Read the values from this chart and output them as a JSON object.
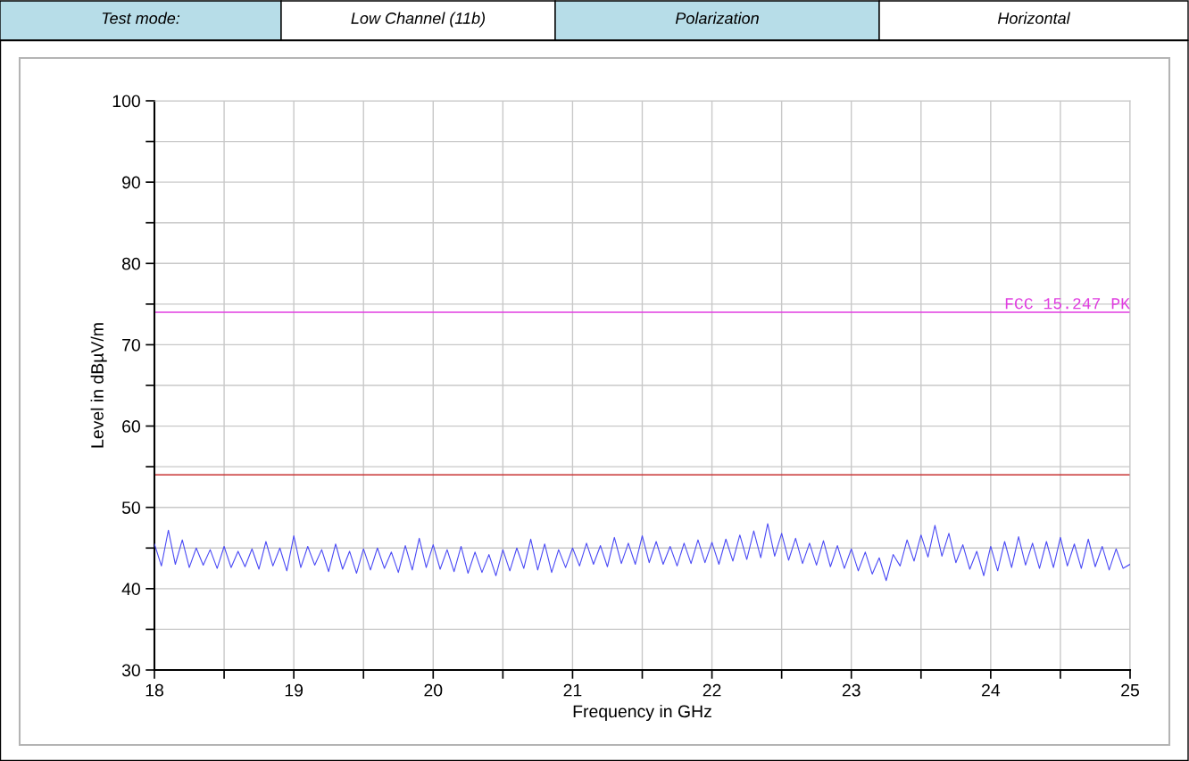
{
  "chart_data": {
    "type": "line",
    "annotations": [
      "Test mode:",
      "Low Channel (11b)",
      "Polarization",
      "Horizontal"
    ],
    "xlabel": "Frequency in GHz",
    "ylabel": "Level in dBµV/m",
    "xlim": [
      18,
      25
    ],
    "ylim": [
      30,
      100
    ],
    "xticks": [
      18,
      {
        "value": 18.5,
        "label": null
      },
      19,
      {
        "value": 19.5,
        "label": null
      },
      20,
      {
        "value": 20.5,
        "label": null
      },
      21,
      {
        "value": 21.5,
        "label": null
      },
      22,
      {
        "value": 22.5,
        "label": null
      },
      23,
      {
        "value": 23.5,
        "label": null
      },
      24,
      {
        "value": 24.5,
        "label": null
      },
      25
    ],
    "yticks": [
      30,
      {
        "value": 35,
        "label": null
      },
      40,
      {
        "value": 45,
        "label": null
      },
      50,
      {
        "value": 55,
        "label": null
      },
      60,
      {
        "value": 65,
        "label": null
      },
      70,
      {
        "value": 75,
        "label": null
      },
      80,
      {
        "value": 85,
        "label": null
      },
      90,
      {
        "value": 95,
        "label": null
      },
      100
    ],
    "grid": true,
    "marker": "none",
    "line_style": "solid",
    "ref_lines": [
      {
        "axis": "y",
        "value": 74,
        "label": "FCC 15.247 PK",
        "color": "#e03ce0"
      },
      {
        "axis": "y",
        "value": 54,
        "color": "#c83232"
      }
    ],
    "series": [
      {
        "color": "#4b4bf5",
        "x": [
          18.0,
          18.05,
          18.1,
          18.15,
          18.2,
          18.25,
          18.3,
          18.35,
          18.4,
          18.45,
          18.5,
          18.55,
          18.6,
          18.65,
          18.7,
          18.75,
          18.8,
          18.85,
          18.9,
          18.95,
          19.0,
          19.05,
          19.1,
          19.15,
          19.2,
          19.25,
          19.3,
          19.35,
          19.4,
          19.45,
          19.5,
          19.55,
          19.6,
          19.65,
          19.7,
          19.75,
          19.8,
          19.85,
          19.9,
          19.95,
          20.0,
          20.05,
          20.1,
          20.15,
          20.2,
          20.25,
          20.3,
          20.35,
          20.4,
          20.45,
          20.5,
          20.55,
          20.6,
          20.65,
          20.7,
          20.75,
          20.8,
          20.85,
          20.9,
          20.95,
          21.0,
          21.05,
          21.1,
          21.15,
          21.2,
          21.25,
          21.3,
          21.35,
          21.4,
          21.45,
          21.5,
          21.55,
          21.6,
          21.65,
          21.7,
          21.75,
          21.8,
          21.85,
          21.9,
          21.95,
          22.0,
          22.05,
          22.1,
          22.15,
          22.2,
          22.25,
          22.3,
          22.35,
          22.4,
          22.45,
          22.5,
          22.55,
          22.6,
          22.65,
          22.7,
          22.75,
          22.8,
          22.85,
          22.9,
          22.95,
          23.0,
          23.05,
          23.1,
          23.15,
          23.2,
          23.25,
          23.3,
          23.35,
          23.4,
          23.45,
          23.5,
          23.55,
          23.6,
          23.65,
          23.7,
          23.75,
          23.8,
          23.85,
          23.9,
          23.95,
          24.0,
          24.05,
          24.1,
          24.15,
          24.2,
          24.25,
          24.3,
          24.35,
          24.4,
          24.45,
          24.5,
          24.55,
          24.6,
          24.65,
          24.7,
          24.75,
          24.8,
          24.85,
          24.9,
          24.95,
          25.0
        ],
        "values": [
          45.5,
          42.8,
          47.2,
          43.0,
          46.0,
          42.6,
          45.0,
          42.9,
          44.8,
          42.5,
          45.2,
          42.6,
          44.6,
          42.7,
          44.9,
          42.4,
          45.8,
          42.8,
          45.0,
          42.2,
          46.5,
          42.6,
          45.2,
          42.9,
          44.8,
          42.1,
          45.5,
          42.4,
          44.6,
          41.9,
          44.9,
          42.3,
          45.0,
          42.5,
          44.5,
          42.0,
          45.3,
          42.3,
          46.2,
          42.6,
          45.4,
          42.4,
          44.8,
          42.1,
          45.2,
          41.9,
          44.5,
          42.0,
          44.2,
          41.6,
          44.8,
          42.2,
          45.0,
          42.5,
          46.1,
          42.3,
          45.5,
          42.0,
          44.8,
          42.6,
          45.0,
          42.8,
          45.6,
          43.0,
          45.3,
          42.7,
          46.3,
          43.1,
          45.6,
          43.0,
          46.5,
          43.2,
          45.8,
          43.0,
          45.2,
          42.8,
          45.6,
          43.1,
          46.0,
          43.2,
          45.7,
          43.0,
          46.1,
          43.4,
          46.6,
          43.6,
          47.1,
          43.8,
          48.0,
          44.0,
          46.8,
          43.5,
          46.2,
          43.1,
          45.6,
          42.9,
          45.9,
          42.7,
          45.3,
          42.5,
          44.9,
          42.2,
          44.5,
          41.8,
          43.8,
          41.0,
          44.2,
          42.8,
          46.0,
          43.4,
          46.6,
          43.9,
          47.8,
          44.0,
          46.8,
          43.2,
          45.4,
          42.4,
          44.6,
          41.6,
          45.2,
          42.2,
          45.8,
          42.6,
          46.4,
          42.9,
          45.6,
          42.5,
          45.8,
          42.6,
          46.3,
          42.8,
          45.5,
          42.5,
          46.1,
          42.7,
          45.2,
          42.3,
          44.9,
          42.5,
          43.0
        ]
      }
    ]
  }
}
